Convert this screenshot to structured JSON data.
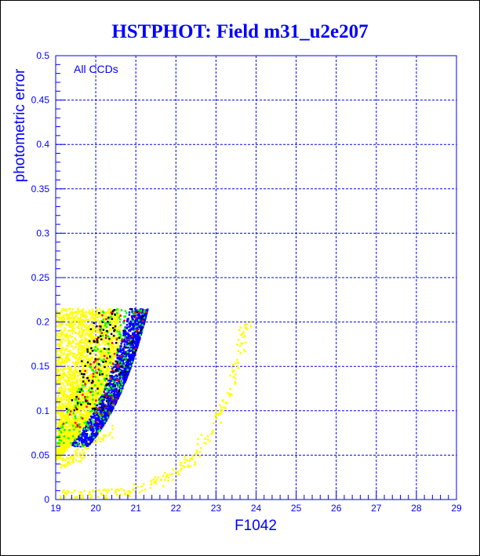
{
  "chart_data": {
    "type": "scatter",
    "title": "HSTPHOT: Field m31_u2e207",
    "xlabel": "F1042",
    "ylabel": "photometric error",
    "annotation": "All CCDs",
    "xlim": [
      19,
      29
    ],
    "ylim": [
      0,
      0.5
    ],
    "xticks": [
      "19",
      "20",
      "21",
      "22",
      "23",
      "24",
      "25",
      "26",
      "27",
      "28",
      "29"
    ],
    "yticks": [
      "0",
      "0.05",
      "0.1",
      "0.15",
      "0.2",
      "0.25",
      "0.3",
      "0.35",
      "0.4",
      "0.45",
      "0.5"
    ],
    "grid": true,
    "colors": {
      "axis": "#0000ff",
      "yellow": "#ffff00",
      "blue": "#0000ff",
      "green": "#00ff00",
      "red": "#ff0000",
      "black": "#000000"
    },
    "clouds": [
      {
        "name": "yellow-bulk",
        "color": "yellow",
        "count": 2600,
        "kind": "bulk",
        "ymin": 0.04,
        "ymax": 0.215
      },
      {
        "name": "blue-ridge",
        "color": "blue",
        "count": 1500,
        "kind": "ridge",
        "width": 0.45,
        "ymin": 0.06,
        "ymax": 0.215
      },
      {
        "name": "green-ridge",
        "color": "green",
        "count": 260,
        "kind": "ridge",
        "width": 1.1,
        "ymin": 0.06,
        "ymax": 0.215
      },
      {
        "name": "red-ridge",
        "color": "red",
        "count": 90,
        "kind": "ridge",
        "width": 1.1,
        "ymin": 0.08,
        "ymax": 0.215
      },
      {
        "name": "black-ridge",
        "color": "black",
        "count": 120,
        "kind": "ridge",
        "width": 1.3,
        "ymin": 0.1,
        "ymax": 0.215
      }
    ],
    "sequences": [
      {
        "name": "yellow-lower",
        "color": "yellow",
        "points": [
          [
            19.1,
            0.004
          ],
          [
            19.5,
            0.005
          ],
          [
            20,
            0.005
          ],
          [
            20.5,
            0.008
          ],
          [
            21,
            0.012
          ],
          [
            21.5,
            0.02
          ],
          [
            22,
            0.03
          ],
          [
            22.5,
            0.05
          ],
          [
            23,
            0.09
          ],
          [
            23.3,
            0.12
          ],
          [
            23.6,
            0.17
          ],
          [
            23.8,
            0.2
          ]
        ],
        "count": 230
      },
      {
        "name": "yellow-upper",
        "color": "yellow",
        "points": [
          [
            19.1,
            0.04
          ],
          [
            19.5,
            0.048
          ],
          [
            20,
            0.065
          ],
          [
            20.5,
            0.08
          ]
        ],
        "count": 70
      }
    ]
  }
}
